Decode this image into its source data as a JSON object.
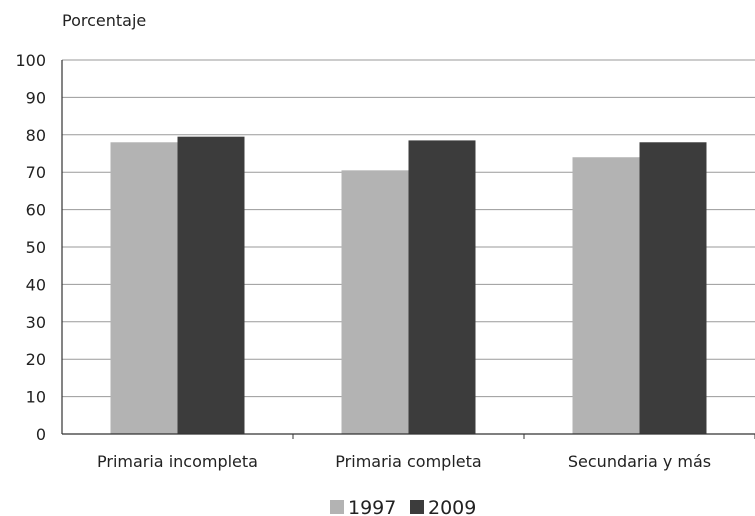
{
  "chart_data": {
    "type": "bar",
    "title": "",
    "ylabel": "Porcentaje",
    "xlabel": "",
    "ylim": [
      0,
      100
    ],
    "yticks": [
      0,
      10,
      20,
      30,
      40,
      50,
      60,
      70,
      80,
      90,
      100
    ],
    "grid": true,
    "legend_position": "bottom",
    "categories": [
      "Primaria incompleta",
      "Primaria completa",
      "Secundaria y más"
    ],
    "series": [
      {
        "name": "1997",
        "color": "#b3b3b3",
        "values": [
          78,
          70.5,
          74
        ]
      },
      {
        "name": "2009",
        "color": "#3c3c3c",
        "values": [
          79.5,
          78.5,
          78
        ]
      }
    ]
  }
}
